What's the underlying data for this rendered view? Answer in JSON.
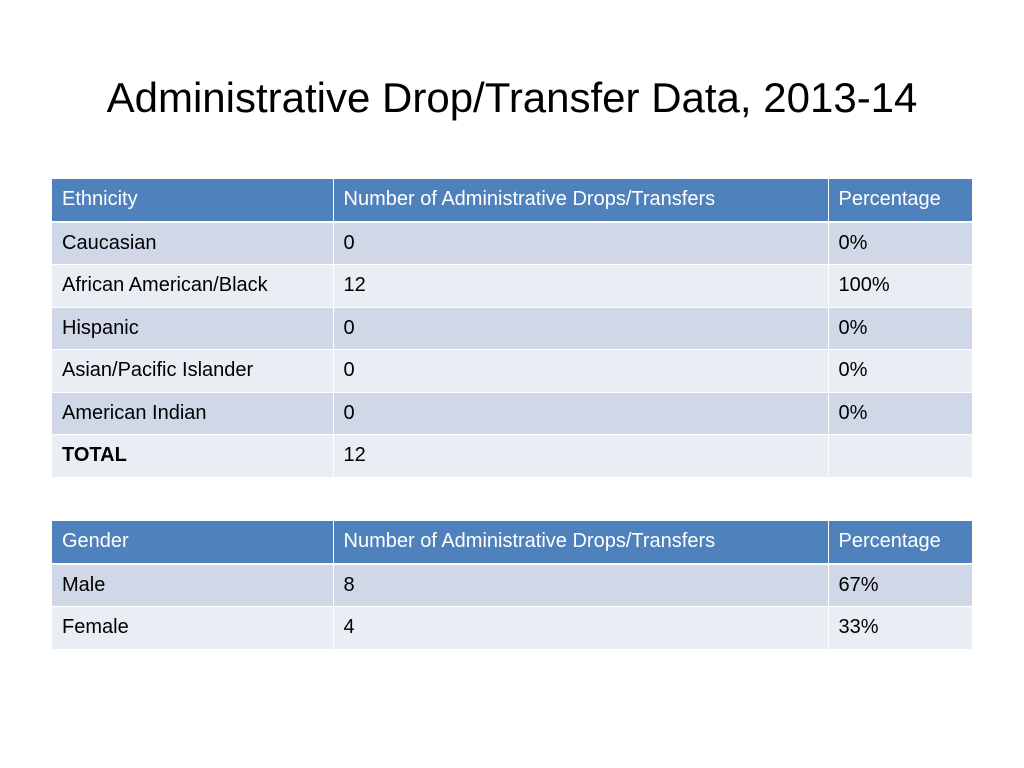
{
  "slide": {
    "title": "Administrative Drop/Transfer Data, 2013-14"
  },
  "ethnicity_table": {
    "headers": [
      "Ethnicity",
      "Number of Administrative Drops/Transfers",
      "Percentage"
    ],
    "rows": [
      [
        "Caucasian",
        "0",
        "0%"
      ],
      [
        "African American/Black",
        "12",
        "100%"
      ],
      [
        "Hispanic",
        "0",
        "0%"
      ],
      [
        "Asian/Pacific Islander",
        "0",
        "0%"
      ],
      [
        "American Indian",
        "0",
        "0%"
      ],
      [
        "TOTAL",
        "12",
        ""
      ]
    ]
  },
  "gender_table": {
    "headers": [
      "Gender",
      "Number of Administrative Drops/Transfers",
      "Percentage"
    ],
    "rows": [
      [
        "Male",
        "8",
        "67%"
      ],
      [
        "Female",
        "4",
        "33%"
      ]
    ]
  },
  "colors": {
    "header_bg": "#4f81bd",
    "row_dark": "#d0d8e8",
    "row_light": "#e9edf4"
  }
}
